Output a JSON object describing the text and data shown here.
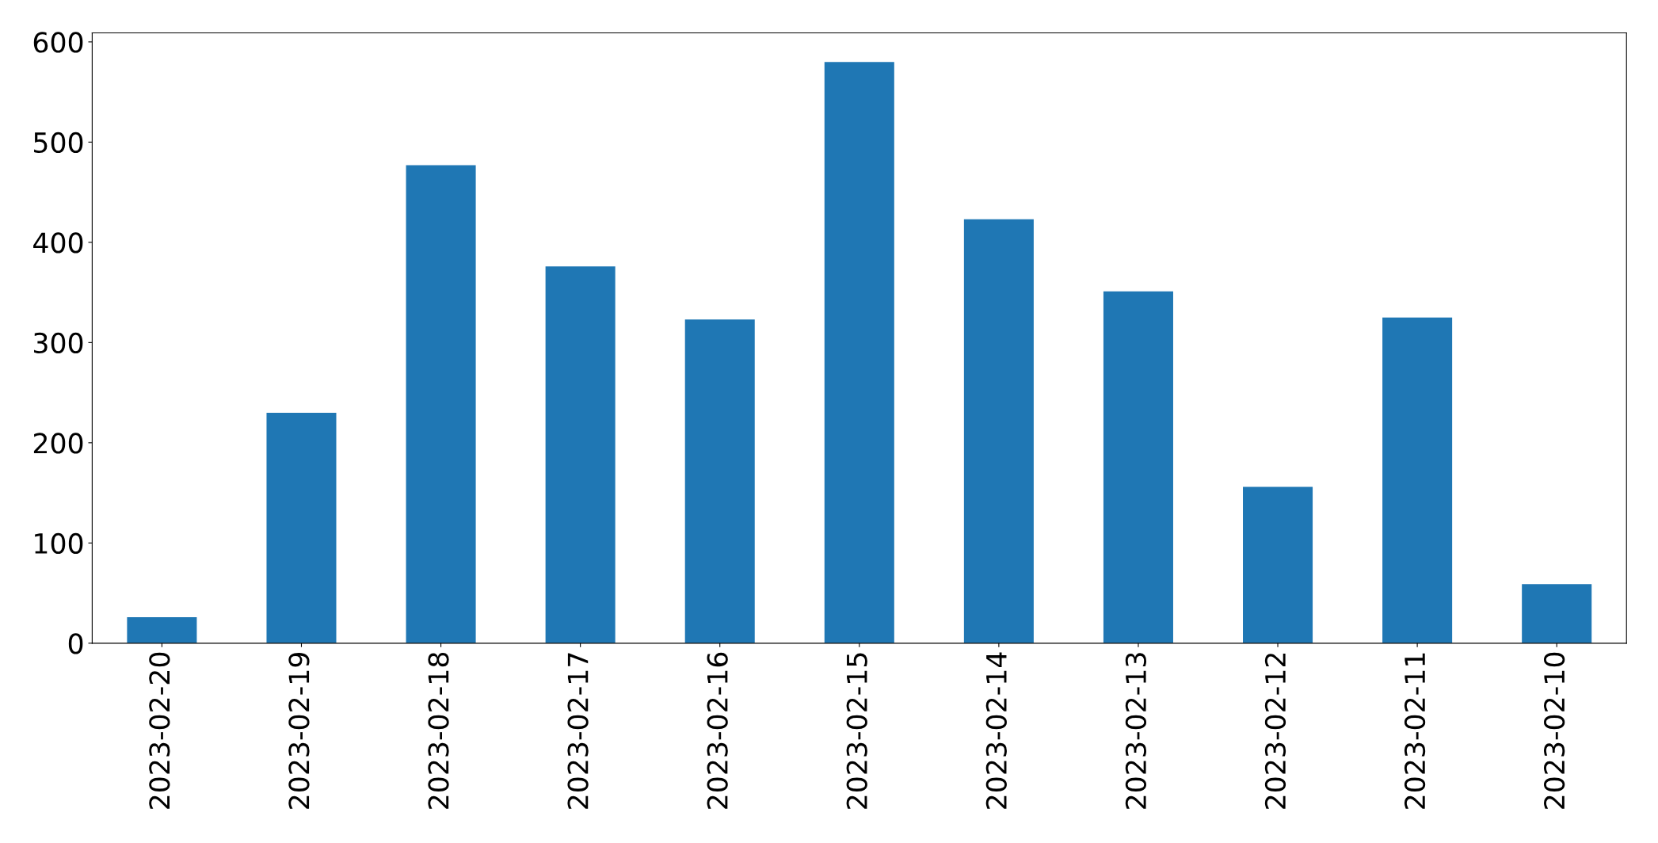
{
  "chart_data": {
    "type": "bar",
    "categories": [
      "2023-02-20",
      "2023-02-19",
      "2023-02-18",
      "2023-02-17",
      "2023-02-16",
      "2023-02-15",
      "2023-02-14",
      "2023-02-13",
      "2023-02-12",
      "2023-02-11",
      "2023-02-10"
    ],
    "values": [
      26,
      230,
      477,
      376,
      323,
      580,
      423,
      351,
      156,
      325,
      59
    ],
    "color": "#1f77b4",
    "ylim": [
      0,
      609
    ],
    "yticks": [
      0,
      100,
      200,
      300,
      400,
      500,
      600
    ],
    "grid": false,
    "legend": false
  }
}
